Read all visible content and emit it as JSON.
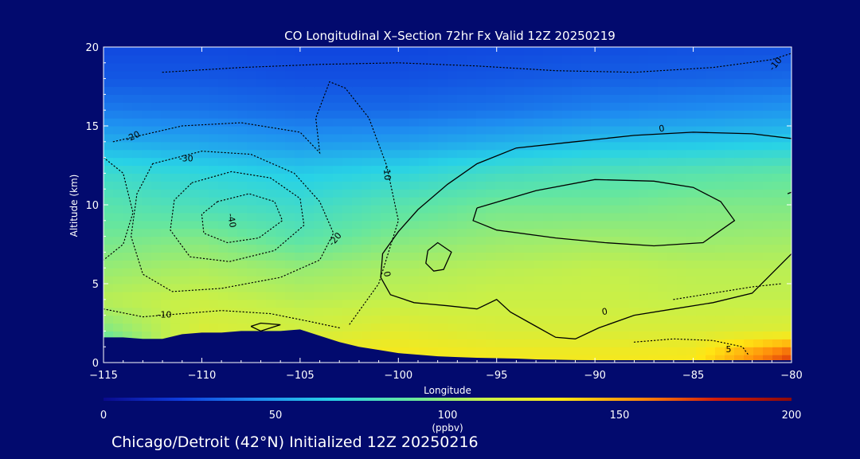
{
  "chart_data": {
    "type": "heatmap",
    "title": "CO Longitudinal X–Section 72hr  Fx Valid 12Z 20250219",
    "xlabel": "Longitude",
    "ylabel": "Altitude (km)",
    "xlim": [
      -115,
      -80
    ],
    "ylim": [
      0,
      20
    ],
    "x_ticks": [
      -115,
      -110,
      -105,
      -100,
      -95,
      -90,
      -85,
      -80
    ],
    "x_tick_labels": [
      "−115",
      "−110",
      "−105",
      "−100",
      "−95",
      "−90",
      "−85",
      "−80"
    ],
    "y_ticks": [
      0,
      5,
      10,
      15,
      20
    ],
    "y_tick_labels": [
      "0",
      "5",
      "10",
      "15",
      "20"
    ],
    "colorbar": {
      "min": 0,
      "max": 200,
      "ticks": [
        0,
        50,
        100,
        150,
        200
      ],
      "tick_labels": [
        "0",
        "50",
        "100",
        "150",
        "200"
      ],
      "units": "(ppbv)",
      "colors": [
        "#0a0a8c",
        "#0e3cdc",
        "#1e8cf0",
        "#28d2e6",
        "#64e6a0",
        "#c8f048",
        "#ffe614",
        "#ff8c0a",
        "#d21e0a",
        "#8c0a0a"
      ]
    },
    "field": {
      "x": [
        -115,
        -110,
        -105,
        -100,
        -95,
        -90,
        -85,
        -80
      ],
      "y": [
        0.5,
        2,
        4,
        6,
        8,
        10,
        12,
        14,
        16,
        18,
        20
      ],
      "values": [
        [
          70,
          130,
          130,
          130,
          128,
          128,
          130,
          170
        ],
        [
          95,
          118,
          115,
          122,
          118,
          118,
          118,
          120
        ],
        [
          108,
          112,
          108,
          110,
          112,
          112,
          110,
          110
        ],
        [
          100,
          105,
          100,
          105,
          108,
          110,
          108,
          108
        ],
        [
          92,
          95,
          85,
          95,
          100,
          102,
          100,
          102
        ],
        [
          85,
          80,
          75,
          85,
          92,
          92,
          95,
          95
        ],
        [
          75,
          70,
          65,
          70,
          78,
          82,
          85,
          88
        ],
        [
          55,
          52,
          48,
          50,
          55,
          60,
          62,
          65
        ],
        [
          40,
          38,
          35,
          35,
          38,
          42,
          45,
          48
        ],
        [
          30,
          30,
          28,
          28,
          30,
          32,
          33,
          35
        ],
        [
          26,
          26,
          25,
          25,
          26,
          27,
          28,
          28
        ]
      ]
    },
    "terrain": {
      "lon": [
        -115,
        -114,
        -113,
        -112,
        -111,
        -110,
        -109,
        -108,
        -107,
        -106,
        -105,
        -104,
        -103,
        -102,
        -101,
        -100,
        -99,
        -98,
        -97,
        -96,
        -95,
        -94,
        -93,
        -92,
        -91,
        -90,
        -89,
        -88,
        -87,
        -86,
        -85,
        -84,
        -83,
        -82,
        -81,
        -80
      ],
      "alt": [
        1.6,
        1.6,
        1.5,
        1.5,
        1.8,
        1.9,
        1.9,
        2.0,
        2.0,
        2.0,
        2.1,
        1.7,
        1.3,
        1.0,
        0.8,
        0.6,
        0.5,
        0.4,
        0.35,
        0.3,
        0.28,
        0.25,
        0.2,
        0.18,
        0.16,
        0.15,
        0.15,
        0.15,
        0.15,
        0.15,
        0.15,
        0.15,
        0.15,
        0.15,
        0.15,
        0.15
      ]
    },
    "contour_labels": [
      {
        "text": "-10",
        "lon": -80.8,
        "alt": 18.9,
        "angle": -50
      },
      {
        "text": "-20",
        "lon": -113.5,
        "alt": 14.3,
        "angle": -25
      },
      {
        "text": "-30",
        "lon": -110.8,
        "alt": 12.9,
        "angle": 0
      },
      {
        "text": "-40",
        "lon": -108.5,
        "alt": 9.0,
        "angle": 80
      },
      {
        "text": "-10",
        "lon": -100.6,
        "alt": 12.0,
        "angle": 85
      },
      {
        "text": "-20",
        "lon": -103.2,
        "alt": 7.8,
        "angle": -50
      },
      {
        "text": "-10",
        "lon": -111.9,
        "alt": 3.0,
        "angle": 0
      },
      {
        "text": "0",
        "lon": -86.6,
        "alt": 14.8,
        "angle": -10
      },
      {
        "text": "0",
        "lon": -100.6,
        "alt": 5.6,
        "angle": 80
      },
      {
        "text": "0",
        "lon": -89.5,
        "alt": 3.2,
        "angle": -10
      },
      {
        "text": "5",
        "lon": -83.2,
        "alt": 0.8,
        "angle": 0
      }
    ],
    "contours": [
      {
        "style": "solid",
        "points": [
          [
            -80,
            14.2
          ],
          [
            -82,
            14.5
          ],
          [
            -85,
            14.6
          ],
          [
            -88,
            14.4
          ],
          [
            -91,
            14.0
          ],
          [
            -94,
            13.6
          ],
          [
            -96,
            12.6
          ],
          [
            -97.5,
            11.3
          ],
          [
            -99,
            9.7
          ],
          [
            -100,
            8.3
          ],
          [
            -100.8,
            6.9
          ],
          [
            -100.9,
            5.4
          ],
          [
            -100.4,
            4.3
          ],
          [
            -99.2,
            3.8
          ],
          [
            -97.5,
            3.6
          ],
          [
            -96,
            3.4
          ],
          [
            -95,
            4.0
          ],
          [
            -94.3,
            3.2
          ],
          [
            -93,
            2.3
          ],
          [
            -92,
            1.6
          ],
          [
            -91,
            1.5
          ],
          [
            -89.8,
            2.2
          ],
          [
            -88,
            3.0
          ],
          [
            -86,
            3.4
          ],
          [
            -84,
            3.8
          ],
          [
            -82,
            4.4
          ],
          [
            -80,
            6.9
          ]
        ]
      },
      {
        "style": "solid",
        "points": [
          [
            -96,
            9.8
          ],
          [
            -93,
            10.9
          ],
          [
            -90,
            11.6
          ],
          [
            -87,
            11.5
          ],
          [
            -85,
            11.1
          ],
          [
            -83.6,
            10.2
          ],
          [
            -82.9,
            9.0
          ],
          [
            -84.5,
            7.6
          ],
          [
            -87,
            7.4
          ],
          [
            -89.5,
            7.6
          ],
          [
            -92,
            7.9
          ],
          [
            -95,
            8.4
          ],
          [
            -96.2,
            9.0
          ],
          [
            -96,
            9.8
          ]
        ]
      },
      {
        "style": "solid",
        "points": [
          [
            -98.5,
            7.1
          ],
          [
            -98,
            7.6
          ],
          [
            -97.3,
            7.0
          ],
          [
            -97.7,
            5.9
          ],
          [
            -98.2,
            5.8
          ],
          [
            -98.6,
            6.3
          ],
          [
            -98.5,
            7.1
          ]
        ]
      },
      {
        "style": "solid",
        "points": [
          [
            -107.5,
            2.3
          ],
          [
            -107,
            2.5
          ],
          [
            -106,
            2.4
          ],
          [
            -107,
            2.0
          ],
          [
            -107.5,
            2.3
          ]
        ]
      },
      {
        "style": "solid",
        "points": [
          [
            -80.2,
            10.7
          ],
          [
            -80,
            10.8
          ]
        ]
      },
      {
        "style": "dotted",
        "points": [
          [
            -112,
            18.4
          ],
          [
            -108,
            18.7
          ],
          [
            -104,
            18.9
          ],
          [
            -100,
            19.0
          ],
          [
            -96,
            18.8
          ],
          [
            -92,
            18.5
          ],
          [
            -88,
            18.4
          ],
          [
            -84,
            18.7
          ],
          [
            -81,
            19.2
          ],
          [
            -80,
            19.6
          ]
        ]
      },
      {
        "style": "dotted",
        "points": [
          [
            -114.5,
            14.0
          ],
          [
            -111,
            15.0
          ],
          [
            -108,
            15.2
          ],
          [
            -105,
            14.6
          ],
          [
            -104,
            13.3
          ],
          [
            -104.2,
            15.5
          ],
          [
            -103.5,
            17.8
          ],
          [
            -102.7,
            17.4
          ],
          [
            -101.5,
            15.5
          ],
          [
            -100.6,
            12.5
          ],
          [
            -100,
            9.0
          ],
          [
            -101,
            5.0
          ],
          [
            -102.5,
            2.4
          ]
        ]
      },
      {
        "style": "dotted",
        "points": [
          [
            -112.5,
            12.6
          ],
          [
            -110,
            13.4
          ],
          [
            -107.5,
            13.2
          ],
          [
            -105.3,
            12.0
          ],
          [
            -104,
            10.2
          ],
          [
            -103.3,
            8.2
          ],
          [
            -104,
            6.5
          ],
          [
            -106,
            5.4
          ],
          [
            -109,
            4.7
          ],
          [
            -111.5,
            4.5
          ],
          [
            -113,
            5.6
          ],
          [
            -113.6,
            8.0
          ],
          [
            -113.3,
            10.7
          ],
          [
            -112.5,
            12.6
          ]
        ]
      },
      {
        "style": "dotted",
        "points": [
          [
            -110.5,
            11.4
          ],
          [
            -108.5,
            12.1
          ],
          [
            -106.5,
            11.7
          ],
          [
            -105,
            10.4
          ],
          [
            -104.8,
            8.7
          ],
          [
            -106.3,
            7.1
          ],
          [
            -108.6,
            6.4
          ],
          [
            -110.6,
            6.7
          ],
          [
            -111.6,
            8.4
          ],
          [
            -111.4,
            10.3
          ],
          [
            -110.5,
            11.4
          ]
        ]
      },
      {
        "style": "dotted",
        "points": [
          [
            -109.2,
            10.2
          ],
          [
            -107.6,
            10.7
          ],
          [
            -106.3,
            10.2
          ],
          [
            -105.9,
            9.0
          ],
          [
            -107.1,
            7.9
          ],
          [
            -108.7,
            7.6
          ],
          [
            -109.9,
            8.2
          ],
          [
            -110.0,
            9.4
          ],
          [
            -109.2,
            10.2
          ]
        ]
      },
      {
        "style": "dotted",
        "points": [
          [
            -115,
            13.0
          ],
          [
            -114,
            12.0
          ],
          [
            -113.5,
            9.5
          ],
          [
            -114,
            7.5
          ],
          [
            -115,
            6.5
          ]
        ]
      },
      {
        "style": "dotted",
        "points": [
          [
            -115,
            3.4
          ],
          [
            -113,
            2.9
          ],
          [
            -111,
            3.1
          ],
          [
            -109,
            3.3
          ],
          [
            -106.5,
            3.1
          ],
          [
            -104.5,
            2.6
          ],
          [
            -103,
            2.2
          ]
        ]
      },
      {
        "style": "dotted",
        "points": [
          [
            -88,
            1.3
          ],
          [
            -86,
            1.5
          ],
          [
            -84,
            1.4
          ],
          [
            -82.5,
            1.0
          ],
          [
            -82.2,
            0.5
          ]
        ]
      },
      {
        "style": "dotted",
        "points": [
          [
            -86,
            4.0
          ],
          [
            -84,
            4.4
          ],
          [
            -82,
            4.8
          ],
          [
            -80.5,
            5.0
          ]
        ]
      }
    ]
  },
  "footer": "Chicago/Detroit (42°N) Initialized 12Z 20250216"
}
